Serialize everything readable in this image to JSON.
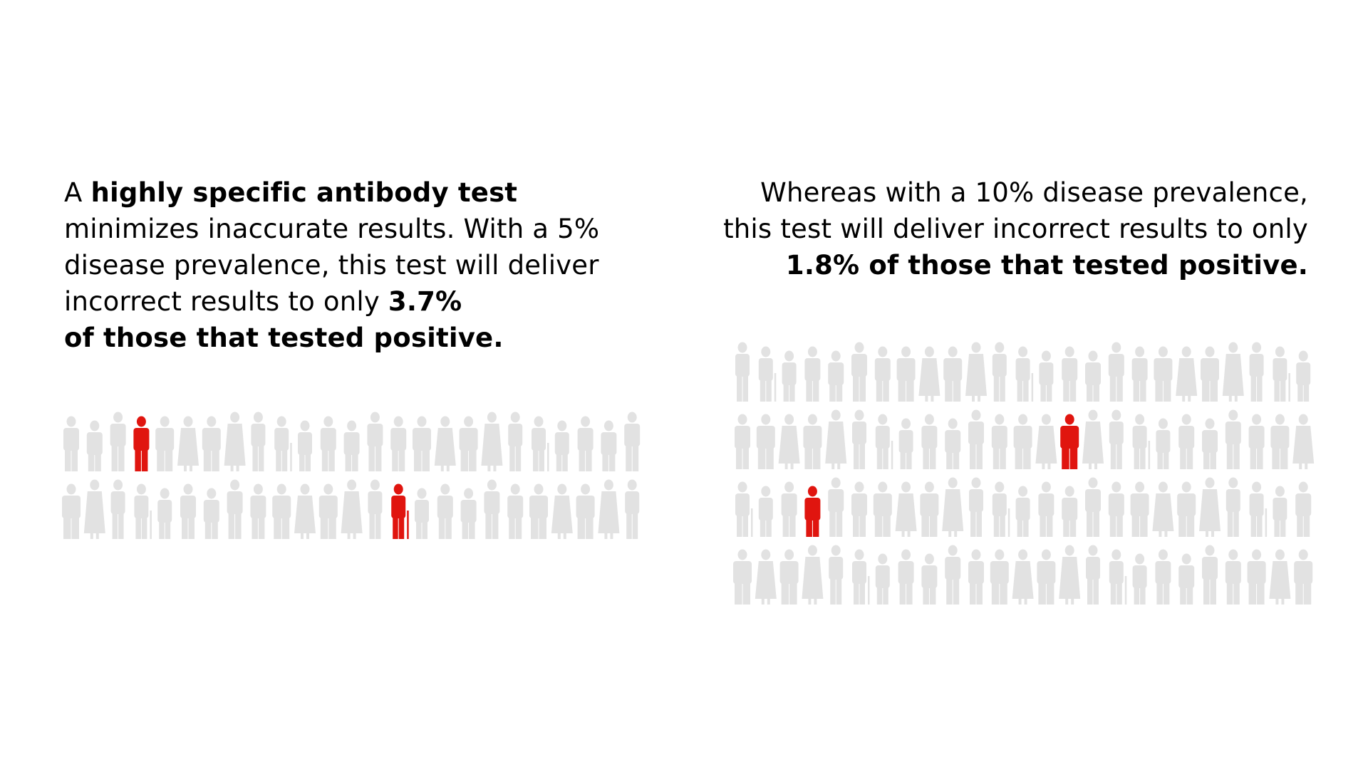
{
  "left_panel": {
    "lines": [
      [
        {
          "text": "A ",
          "bold": false
        },
        {
          "text": "highly specific antibody test",
          "bold": true
        }
      ],
      [
        {
          "text": "minimizes inaccurate results. With a 5%",
          "bold": false
        }
      ],
      [
        {
          "text": "disease prevalence, this test will deliver",
          "bold": false
        }
      ],
      [
        {
          "text": "incorrect results to only ",
          "bold": false
        },
        {
          "text": "3.7%",
          "bold": true
        }
      ],
      [
        {
          "text": "of those that tested positive.",
          "bold": true
        }
      ]
    ],
    "figure_grid": {
      "rows": 2,
      "columns": 25,
      "highlighted": [
        [
          0,
          3
        ],
        [
          1,
          14
        ]
      ]
    }
  },
  "right_panel": {
    "lines": [
      [
        {
          "text": "Whereas with a 10% disease prevalence,",
          "bold": false
        }
      ],
      [
        {
          "text": "this test will deliver incorrect results to only",
          "bold": false
        }
      ],
      [
        {
          "text": "1.8% of those that tested positive.",
          "bold": true
        }
      ]
    ],
    "figure_grid": {
      "rows": 4,
      "columns": 25,
      "highlighted": [
        [
          1,
          14
        ],
        [
          2,
          3
        ]
      ]
    }
  },
  "colors": {
    "figure_gray": "#e2e2e2",
    "figure_highlight": "#e0150f",
    "text": "#000000"
  },
  "icon": "person-silhouette-icon"
}
